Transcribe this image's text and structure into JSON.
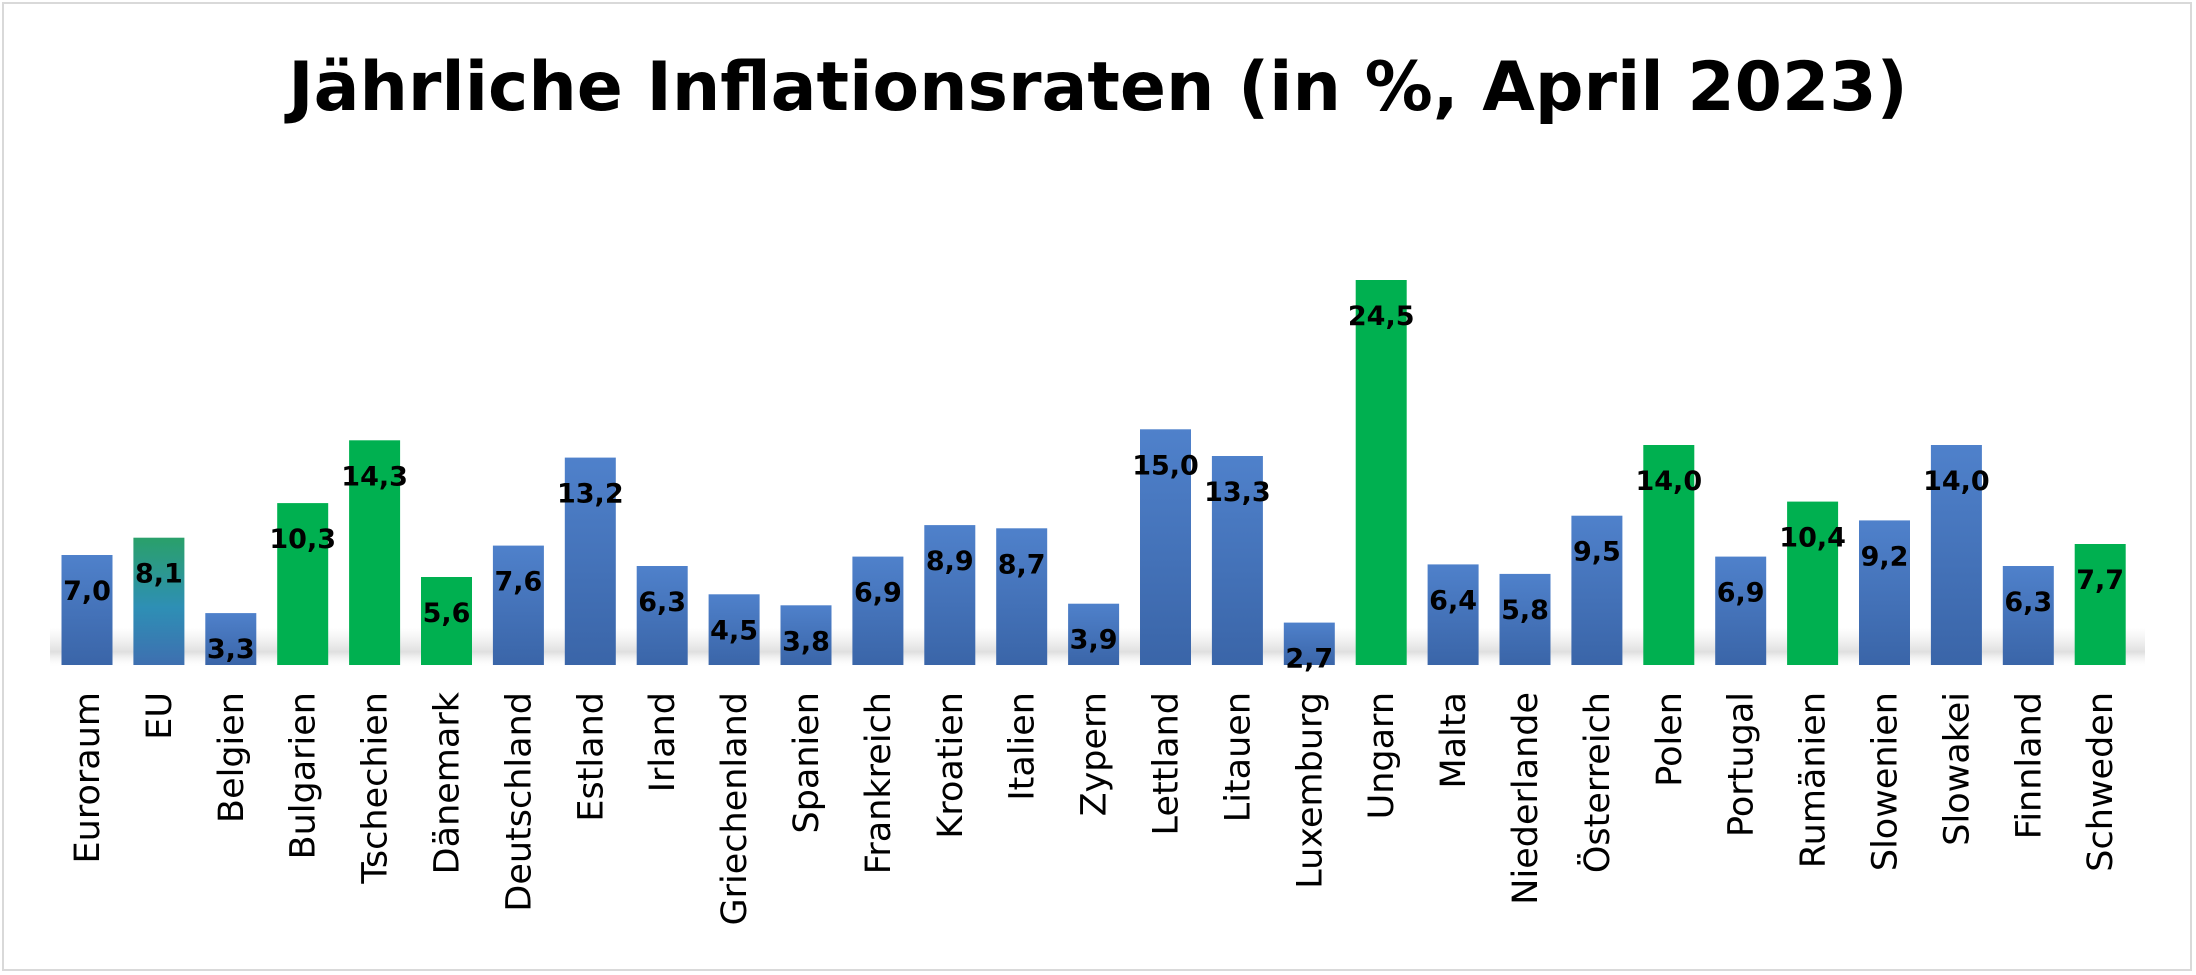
{
  "chart_data": {
    "type": "bar",
    "title": "Jährliche Inflationsraten (in %, April 2023)",
    "categories": [
      "Euroraum",
      "EU",
      "Belgien",
      "Bulgarien",
      "Tschechien",
      "Dänemark",
      "Deutschland",
      "Estland",
      "Irland",
      "Griechenland",
      "Spanien",
      "Frankreich",
      "Kroatien",
      "Italien",
      "Zypern",
      "Lettland",
      "Litauen",
      "Luxemburg",
      "Ungarn",
      "Malta",
      "Niederlande",
      "Österreich",
      "Polen",
      "Portugal",
      "Rumänien",
      "Slowenien",
      "Slowakei",
      "Finnland",
      "Schweden"
    ],
    "values": [
      7.0,
      8.1,
      3.3,
      10.3,
      14.3,
      5.6,
      7.6,
      13.2,
      6.3,
      4.5,
      3.8,
      6.9,
      8.9,
      8.7,
      3.9,
      15.0,
      13.3,
      2.7,
      24.5,
      6.4,
      5.8,
      9.5,
      14.0,
      6.9,
      10.4,
      9.2,
      14.0,
      6.3,
      7.7
    ],
    "value_labels": [
      "7,0",
      "8,1",
      "3,3",
      "10,3",
      "14,3",
      "5,6",
      "7,6",
      "13,2",
      "6,3",
      "4,5",
      "3,8",
      "6,9",
      "8,9",
      "8,7",
      "3,9",
      "15,0",
      "13,3",
      "2,7",
      "24,5",
      "6,4",
      "5,8",
      "9,5",
      "14,0",
      "6,9",
      "10,4",
      "9,2",
      "14,0",
      "6,3",
      "7,7"
    ],
    "bar_groups": [
      "euro",
      "eu",
      "euro",
      "non-euro",
      "non-euro",
      "non-euro",
      "euro",
      "euro",
      "euro",
      "euro",
      "euro",
      "euro",
      "euro",
      "euro",
      "euro",
      "euro",
      "euro",
      "euro",
      "non-euro",
      "euro",
      "euro",
      "euro",
      "non-euro",
      "euro",
      "non-euro",
      "euro",
      "euro",
      "euro",
      "non-euro"
    ],
    "colors": {
      "euro": "#4472c4",
      "non-euro": "#00b050",
      "eu": "#2e8fb5"
    },
    "ylim": [
      0,
      24.5
    ],
    "grid": false,
    "legend": "none",
    "xlabel": "",
    "ylabel": ""
  }
}
